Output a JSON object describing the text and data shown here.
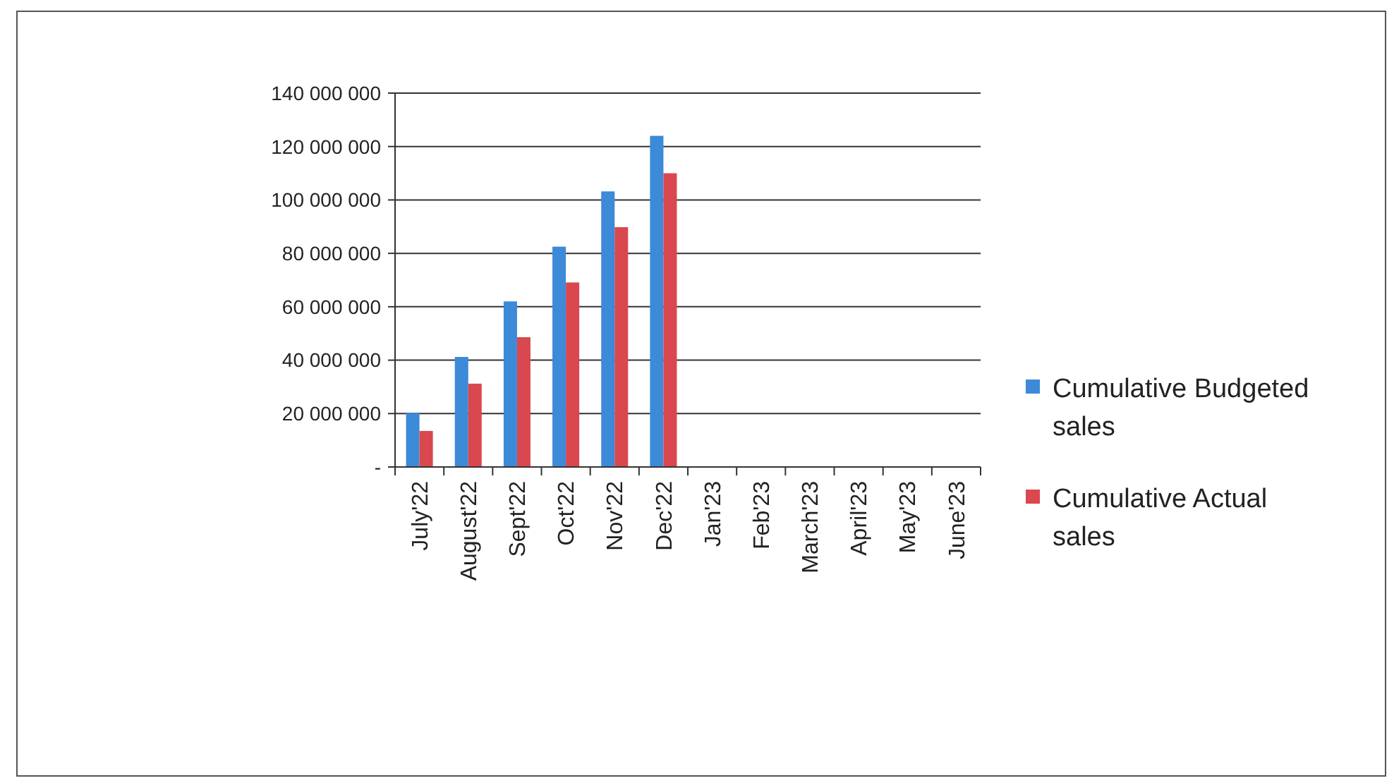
{
  "chart_data": {
    "type": "bar",
    "categories": [
      "July'22",
      "August'22",
      "Sept'22",
      "Oct'22",
      "Nov'22",
      "Dec'22",
      "Jan'23",
      "Feb'23",
      "March'23",
      "April'23",
      "May'23",
      "June'23"
    ],
    "series": [
      {
        "name": "Cumulative Budgeted sales",
        "color": "#3c8ad8",
        "values": [
          20200000,
          41200000,
          62000000,
          82500000,
          103200000,
          124000000,
          null,
          null,
          null,
          null,
          null,
          null
        ]
      },
      {
        "name": "Cumulative Actual sales",
        "color": "#d9484f",
        "values": [
          13500000,
          31200000,
          48600000,
          69100000,
          89800000,
          110000000,
          null,
          null,
          null,
          null,
          null,
          null
        ]
      }
    ],
    "ylim": [
      0,
      140000000
    ],
    "yticks": [
      {
        "value": 0,
        "label": "-"
      },
      {
        "value": 20000000,
        "label": "20 000 000"
      },
      {
        "value": 40000000,
        "label": "40 000 000"
      },
      {
        "value": 60000000,
        "label": "60 000 000"
      },
      {
        "value": 80000000,
        "label": "80 000 000"
      },
      {
        "value": 100000000,
        "label": "100 000 000"
      },
      {
        "value": 120000000,
        "label": "120 000 000"
      },
      {
        "value": 140000000,
        "label": "140 000 000"
      }
    ],
    "grid": "y",
    "legend": "right"
  }
}
